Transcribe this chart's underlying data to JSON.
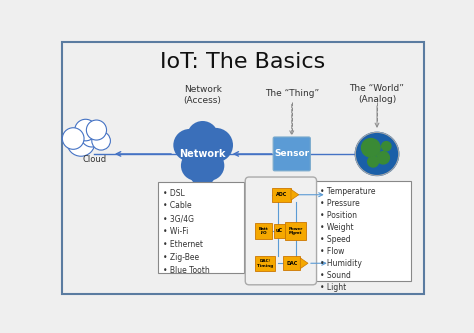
{
  "title": "IoT: The Basics",
  "bg_color": "#efefef",
  "border_color": "#5a7ba0",
  "title_fontsize": 16,
  "title_color": "#111111",
  "label_network_access": "Network\n(Access)",
  "label_the_thing": "The “Thing”",
  "label_the_world": "The “World”\n(Analog)",
  "label_cloud": "Cloud",
  "label_network": "Network",
  "label_sensor": "Sensor",
  "left_list": [
    "• DSL",
    "• Cable",
    "• 3G/4G",
    "• Wi-Fi",
    "• Ethernet",
    "• Zig-Bee",
    "• Blue Tooth"
  ],
  "right_list": [
    "• Temperature",
    "• Pressure",
    "• Position",
    "• Weight",
    "• Speed",
    "• Flow",
    "• Humidity",
    "• Sound",
    "• Light"
  ],
  "network_blob_color": "#3a6fba",
  "sensor_box_color": "#5b9bd5",
  "orange": "#f5a800",
  "arrow_color": "#4472c4",
  "dashed_color": "#888888",
  "line_color": "#4472c4",
  "cloud_color": "#ffffff",
  "cloud_ec": "#4472c4"
}
